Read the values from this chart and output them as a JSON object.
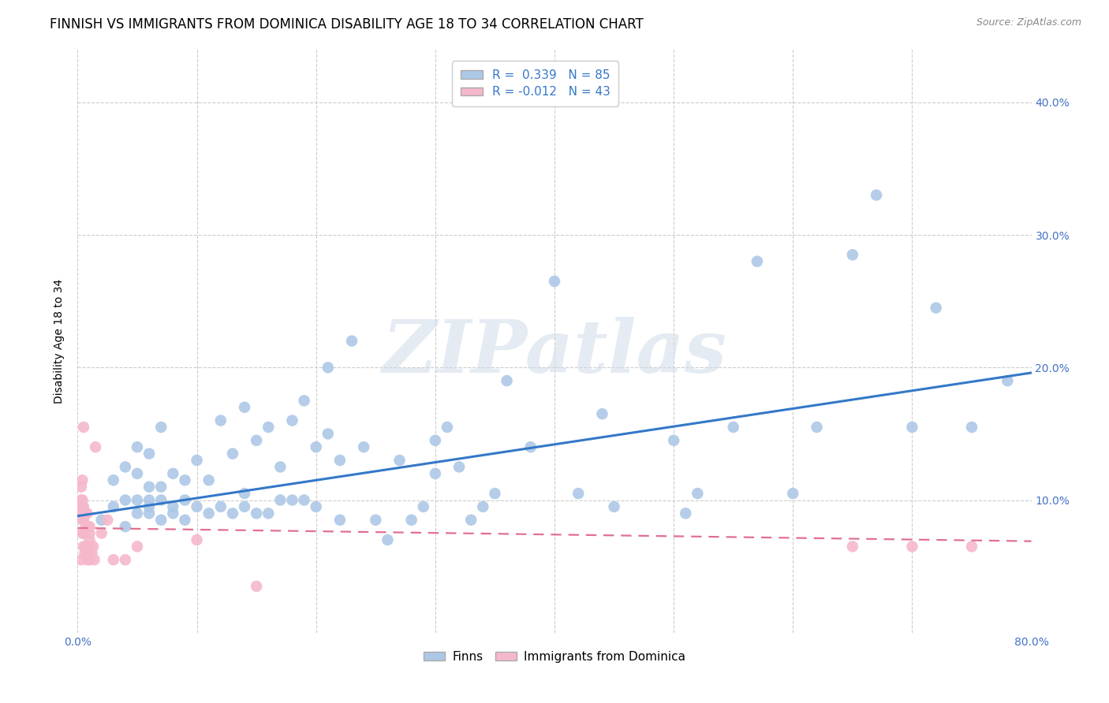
{
  "title": "FINNISH VS IMMIGRANTS FROM DOMINICA DISABILITY AGE 18 TO 34 CORRELATION CHART",
  "source": "Source: ZipAtlas.com",
  "ylabel": "Disability Age 18 to 34",
  "xlabel": "",
  "xlim": [
    0.0,
    0.8
  ],
  "ylim": [
    0.0,
    0.44
  ],
  "xticks": [
    0.0,
    0.1,
    0.2,
    0.3,
    0.4,
    0.5,
    0.6,
    0.7,
    0.8
  ],
  "yticks": [
    0.1,
    0.2,
    0.3,
    0.4
  ],
  "blue_R": 0.339,
  "blue_N": 85,
  "pink_R": -0.012,
  "pink_N": 43,
  "legend_label_blue": "Finns",
  "legend_label_pink": "Immigrants from Dominica",
  "blue_color": "#adc8e6",
  "pink_color": "#f5b8cb",
  "blue_line_color": "#3478c8",
  "pink_line_color": "#e07090",
  "ytick_color": "#4472c4",
  "xtick_color": "#4472c4",
  "watermark_text": "ZIPatlas",
  "blue_points_x": [
    0.02,
    0.03,
    0.03,
    0.04,
    0.04,
    0.04,
    0.05,
    0.05,
    0.05,
    0.05,
    0.06,
    0.06,
    0.06,
    0.06,
    0.06,
    0.07,
    0.07,
    0.07,
    0.07,
    0.08,
    0.08,
    0.08,
    0.09,
    0.09,
    0.09,
    0.1,
    0.1,
    0.11,
    0.11,
    0.12,
    0.12,
    0.13,
    0.13,
    0.14,
    0.14,
    0.14,
    0.15,
    0.15,
    0.16,
    0.16,
    0.17,
    0.17,
    0.18,
    0.18,
    0.19,
    0.19,
    0.2,
    0.2,
    0.21,
    0.21,
    0.22,
    0.22,
    0.23,
    0.24,
    0.25,
    0.26,
    0.27,
    0.28,
    0.29,
    0.3,
    0.3,
    0.31,
    0.32,
    0.33,
    0.34,
    0.35,
    0.36,
    0.38,
    0.4,
    0.42,
    0.44,
    0.45,
    0.5,
    0.51,
    0.52,
    0.55,
    0.57,
    0.6,
    0.62,
    0.65,
    0.67,
    0.7,
    0.72,
    0.75,
    0.78
  ],
  "blue_points_y": [
    0.085,
    0.095,
    0.115,
    0.08,
    0.1,
    0.125,
    0.09,
    0.1,
    0.12,
    0.14,
    0.09,
    0.095,
    0.1,
    0.11,
    0.135,
    0.085,
    0.1,
    0.11,
    0.155,
    0.09,
    0.095,
    0.12,
    0.085,
    0.1,
    0.115,
    0.095,
    0.13,
    0.09,
    0.115,
    0.095,
    0.16,
    0.09,
    0.135,
    0.095,
    0.105,
    0.17,
    0.09,
    0.145,
    0.09,
    0.155,
    0.1,
    0.125,
    0.1,
    0.16,
    0.1,
    0.175,
    0.095,
    0.14,
    0.15,
    0.2,
    0.085,
    0.13,
    0.22,
    0.14,
    0.085,
    0.07,
    0.13,
    0.085,
    0.095,
    0.12,
    0.145,
    0.155,
    0.125,
    0.085,
    0.095,
    0.105,
    0.19,
    0.14,
    0.265,
    0.105,
    0.165,
    0.095,
    0.145,
    0.09,
    0.105,
    0.155,
    0.28,
    0.105,
    0.155,
    0.285,
    0.33,
    0.155,
    0.245,
    0.155,
    0.19
  ],
  "pink_points_x": [
    0.003,
    0.003,
    0.003,
    0.004,
    0.004,
    0.004,
    0.004,
    0.004,
    0.005,
    0.005,
    0.005,
    0.005,
    0.005,
    0.005,
    0.006,
    0.006,
    0.006,
    0.007,
    0.007,
    0.008,
    0.008,
    0.009,
    0.009,
    0.01,
    0.01,
    0.01,
    0.01,
    0.01,
    0.012,
    0.013,
    0.014,
    0.015,
    0.02,
    0.025,
    0.03,
    0.04,
    0.05,
    0.1,
    0.15,
    0.65,
    0.7,
    0.75,
    0.003
  ],
  "pink_points_y": [
    0.09,
    0.1,
    0.11,
    0.075,
    0.085,
    0.095,
    0.1,
    0.115,
    0.065,
    0.075,
    0.085,
    0.09,
    0.095,
    0.155,
    0.06,
    0.075,
    0.09,
    0.065,
    0.08,
    0.055,
    0.09,
    0.06,
    0.08,
    0.055,
    0.065,
    0.07,
    0.075,
    0.08,
    0.06,
    0.065,
    0.055,
    0.14,
    0.075,
    0.085,
    0.055,
    0.055,
    0.065,
    0.07,
    0.035,
    0.065,
    0.065,
    0.065,
    0.055
  ],
  "blue_trend_x": [
    0.0,
    0.8
  ],
  "blue_trend_y": [
    0.088,
    0.196
  ],
  "pink_trend_x": [
    0.0,
    0.8
  ],
  "pink_trend_y": [
    0.079,
    0.069
  ],
  "background_color": "#ffffff",
  "grid_color": "#cccccc",
  "title_fontsize": 12,
  "axis_label_fontsize": 10,
  "tick_fontsize": 10,
  "legend_fontsize": 11,
  "source_fontsize": 9
}
